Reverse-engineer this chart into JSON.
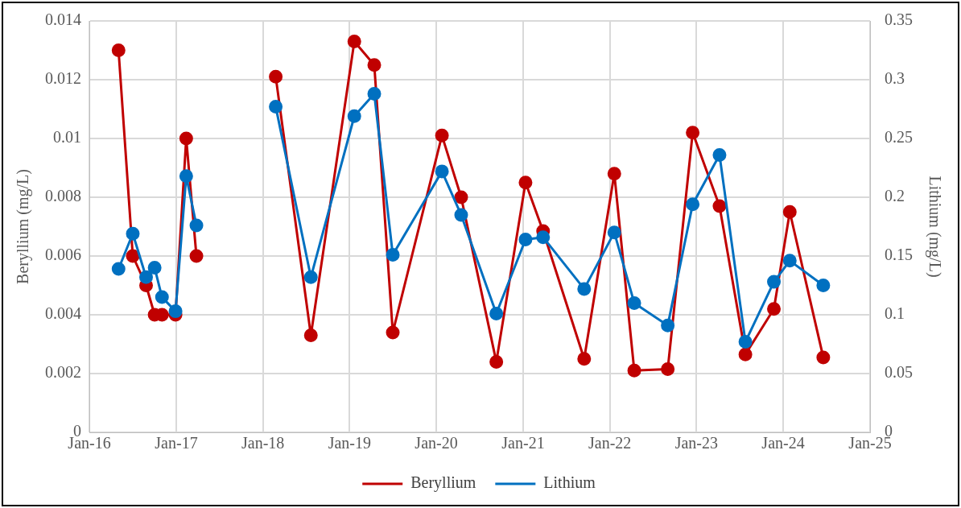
{
  "chart_data": {
    "type": "line",
    "ylabel": "Beryllium (mg/L)",
    "y2label": "Lithium (mg/L)",
    "marker": "circle",
    "line_style": "solid",
    "grid": true,
    "legend": "bottom",
    "xlim": [
      "2016-01",
      "2025-01"
    ],
    "xticks": [
      {
        "value": "2016-01",
        "label": "Jan-16"
      },
      {
        "value": "2017-01",
        "label": "Jan-17"
      },
      {
        "value": "2018-01",
        "label": "Jan-18"
      },
      {
        "value": "2019-01",
        "label": "Jan-19"
      },
      {
        "value": "2020-01",
        "label": "Jan-20"
      },
      {
        "value": "2021-01",
        "label": "Jan-21"
      },
      {
        "value": "2022-01",
        "label": "Jan-22"
      },
      {
        "value": "2023-01",
        "label": "Jan-23"
      },
      {
        "value": "2024-01",
        "label": "Jan-24"
      },
      {
        "value": "2025-01",
        "label": "Jan-25"
      }
    ],
    "ylim": [
      0,
      0.014
    ],
    "yticks": [
      0,
      0.002,
      0.004,
      0.006,
      0.008,
      0.01,
      0.012,
      0.014
    ],
    "y2lim": [
      0,
      0.35
    ],
    "y2ticks": [
      0,
      0.05,
      0.1,
      0.15,
      0.2,
      0.25,
      0.3,
      0.35
    ],
    "x": [
      "2016-05-03",
      "2016-07-02",
      "2016-08-27",
      "2016-10-02",
      "2016-11-02",
      "2016-12-29",
      "2017-02-12",
      "2017-03-27",
      "2017-09-01",
      "2018-02-24",
      "2018-07-22",
      "2019-01-21",
      "2019-04-15",
      "2019-07-02",
      "2020-01-25",
      "2020-04-15",
      "2020-09-10",
      "2021-01-11",
      "2021-03-26",
      "2021-09-15",
      "2022-01-20",
      "2022-04-14",
      "2022-09-02",
      "2022-12-16",
      "2023-04-08",
      "2023-07-26",
      "2023-11-23",
      "2024-01-29",
      "2024-06-18"
    ],
    "series": [
      {
        "name": "Beryllium",
        "color": "#c00000",
        "values": [
          0.013,
          0.006,
          0.005,
          0.004,
          0.004,
          0.004,
          0.01,
          0.006,
          null,
          0.0121,
          0.0033,
          0.0133,
          0.0125,
          0.0034,
          0.0101,
          0.008,
          0.0024,
          0.0085,
          0.00685,
          0.0025,
          0.0088,
          0.0021,
          0.00215,
          0.0102,
          0.0077,
          0.00265,
          0.0042,
          0.0075,
          0.00255
        ]
      },
      {
        "name": "Lithium",
        "color": "#0070c0",
        "axis": "y2",
        "values": [
          0.139,
          0.169,
          0.132,
          0.14,
          0.115,
          0.103,
          0.218,
          0.176,
          null,
          0.277,
          0.132,
          0.269,
          0.288,
          0.151,
          0.222,
          0.185,
          0.101,
          0.164,
          0.166,
          0.122,
          0.17,
          0.11,
          0.091,
          0.194,
          0.236,
          0.077,
          0.128,
          0.146,
          0.125
        ]
      }
    ]
  }
}
